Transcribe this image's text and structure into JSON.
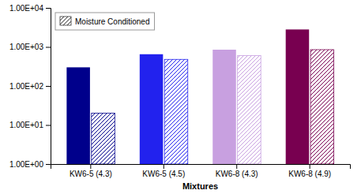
{
  "chart_data": {
    "type": "bar",
    "categories": [
      "KW6-5 (4.3)",
      "KW6-5 (4.5)",
      "KW6-8 (4.3)",
      "KW6-8 (4.9)"
    ],
    "series": [
      {
        "colors": [
          "#00008B",
          "#2222EE",
          "#C8A0E0",
          "#780050"
        ],
        "values": [
          300,
          650,
          850,
          2800
        ]
      },
      {
        "name": "Moisture Conditioned",
        "colors": [
          "#00008B",
          "#2222EE",
          "#C8A0E0",
          "#780050"
        ],
        "values": [
          20,
          480,
          600,
          850
        ]
      }
    ],
    "xlabel": "Mixtures",
    "log": "y",
    "ylim": [
      1.0,
      10000
    ],
    "yticks": [
      {
        "value": 1,
        "label": "1.00E+00"
      },
      {
        "value": 10,
        "label": "1.00E+01"
      },
      {
        "value": 100,
        "label": "1.00E+02"
      },
      {
        "value": 1000,
        "label": "1.00E+03"
      },
      {
        "value": 10000,
        "label": "1.00E+04"
      }
    ],
    "legend": "upper left",
    "grid": false
  }
}
